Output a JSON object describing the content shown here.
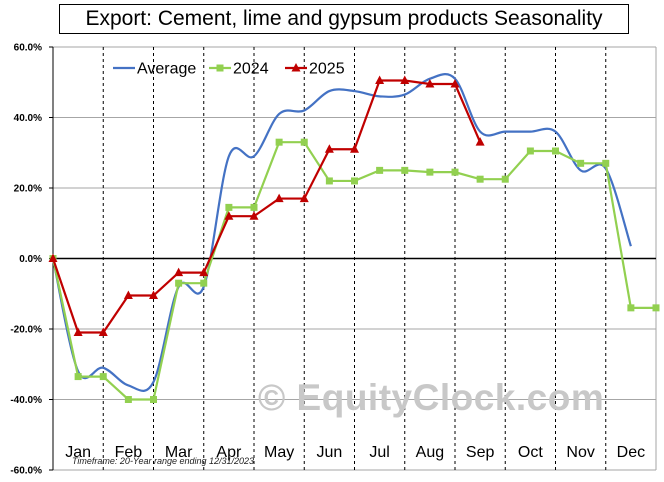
{
  "chart_data": {
    "type": "line",
    "title": "Export: Cement,  lime and gypsum products Seasonality",
    "categories": [
      "Jan",
      "Feb",
      "Mar",
      "Apr",
      "May",
      "Jun",
      "Jul",
      "Aug",
      "Sep",
      "Oct",
      "Nov",
      "Dec"
    ],
    "y_tick_labels": [
      "60.0%",
      "40.0%",
      "20.0%",
      "0.0%",
      "-20.0%",
      "-40.0%",
      "-60.0%"
    ],
    "ylim": [
      -60,
      60
    ],
    "y_unit": "%",
    "grid": "horizontal gridlines; dashed vertical month separators",
    "legend_position": "top-left",
    "series": [
      {
        "name": "Average",
        "color": "#4472c4",
        "marker": "none",
        "x": [
          0,
          0.5,
          1.0,
          1.5,
          2.0,
          2.5,
          3.0,
          3.5,
          4.0,
          4.5,
          5.0,
          5.5,
          6.0,
          6.5,
          7.0,
          7.5,
          8.0,
          8.5,
          9.0,
          9.5,
          10.0,
          10.5,
          11.0,
          11.5
        ],
        "values": [
          0,
          -32,
          -31,
          -36,
          -35,
          -8,
          -8,
          29,
          29,
          41,
          42,
          47.5,
          47.5,
          46,
          46.5,
          51,
          51,
          36,
          36,
          36,
          36,
          25,
          25.5,
          3.5
        ]
      },
      {
        "name": "2024",
        "color": "#92d050",
        "marker": "square",
        "x": [
          0,
          0.5,
          1.0,
          1.5,
          2.0,
          2.5,
          3.0,
          3.5,
          4.0,
          4.5,
          5.0,
          5.5,
          6.0,
          6.5,
          7.0,
          7.5,
          8.0,
          8.5,
          9.0,
          9.5,
          10.0,
          10.5,
          11.0,
          11.5,
          12.0
        ],
        "values": [
          0,
          -33.5,
          -33.5,
          -40,
          -40,
          -7,
          -7,
          14.5,
          14.5,
          33,
          33,
          22,
          22,
          25,
          25,
          24.5,
          24.5,
          22.5,
          22.5,
          30.5,
          30.5,
          27,
          27,
          -14,
          -14
        ]
      },
      {
        "name": "2025",
        "color": "#c00000",
        "marker": "triangle",
        "x": [
          0,
          0.5,
          1.0,
          1.5,
          2.0,
          2.5,
          3.0,
          3.5,
          4.0,
          4.5,
          5.0,
          5.5,
          6.0,
          6.5,
          7.0,
          7.5,
          8.0,
          8.5
        ],
        "values": [
          0,
          -21,
          -21,
          -10.5,
          -10.5,
          -4,
          -4,
          12,
          12,
          17,
          17,
          31,
          31,
          50.5,
          50.5,
          49.5,
          49.5,
          33
        ]
      }
    ],
    "annotations": [
      "Timeframe: 20-Year range ending 12/31/2023"
    ]
  },
  "watermark_text": "© EquityClock.com"
}
